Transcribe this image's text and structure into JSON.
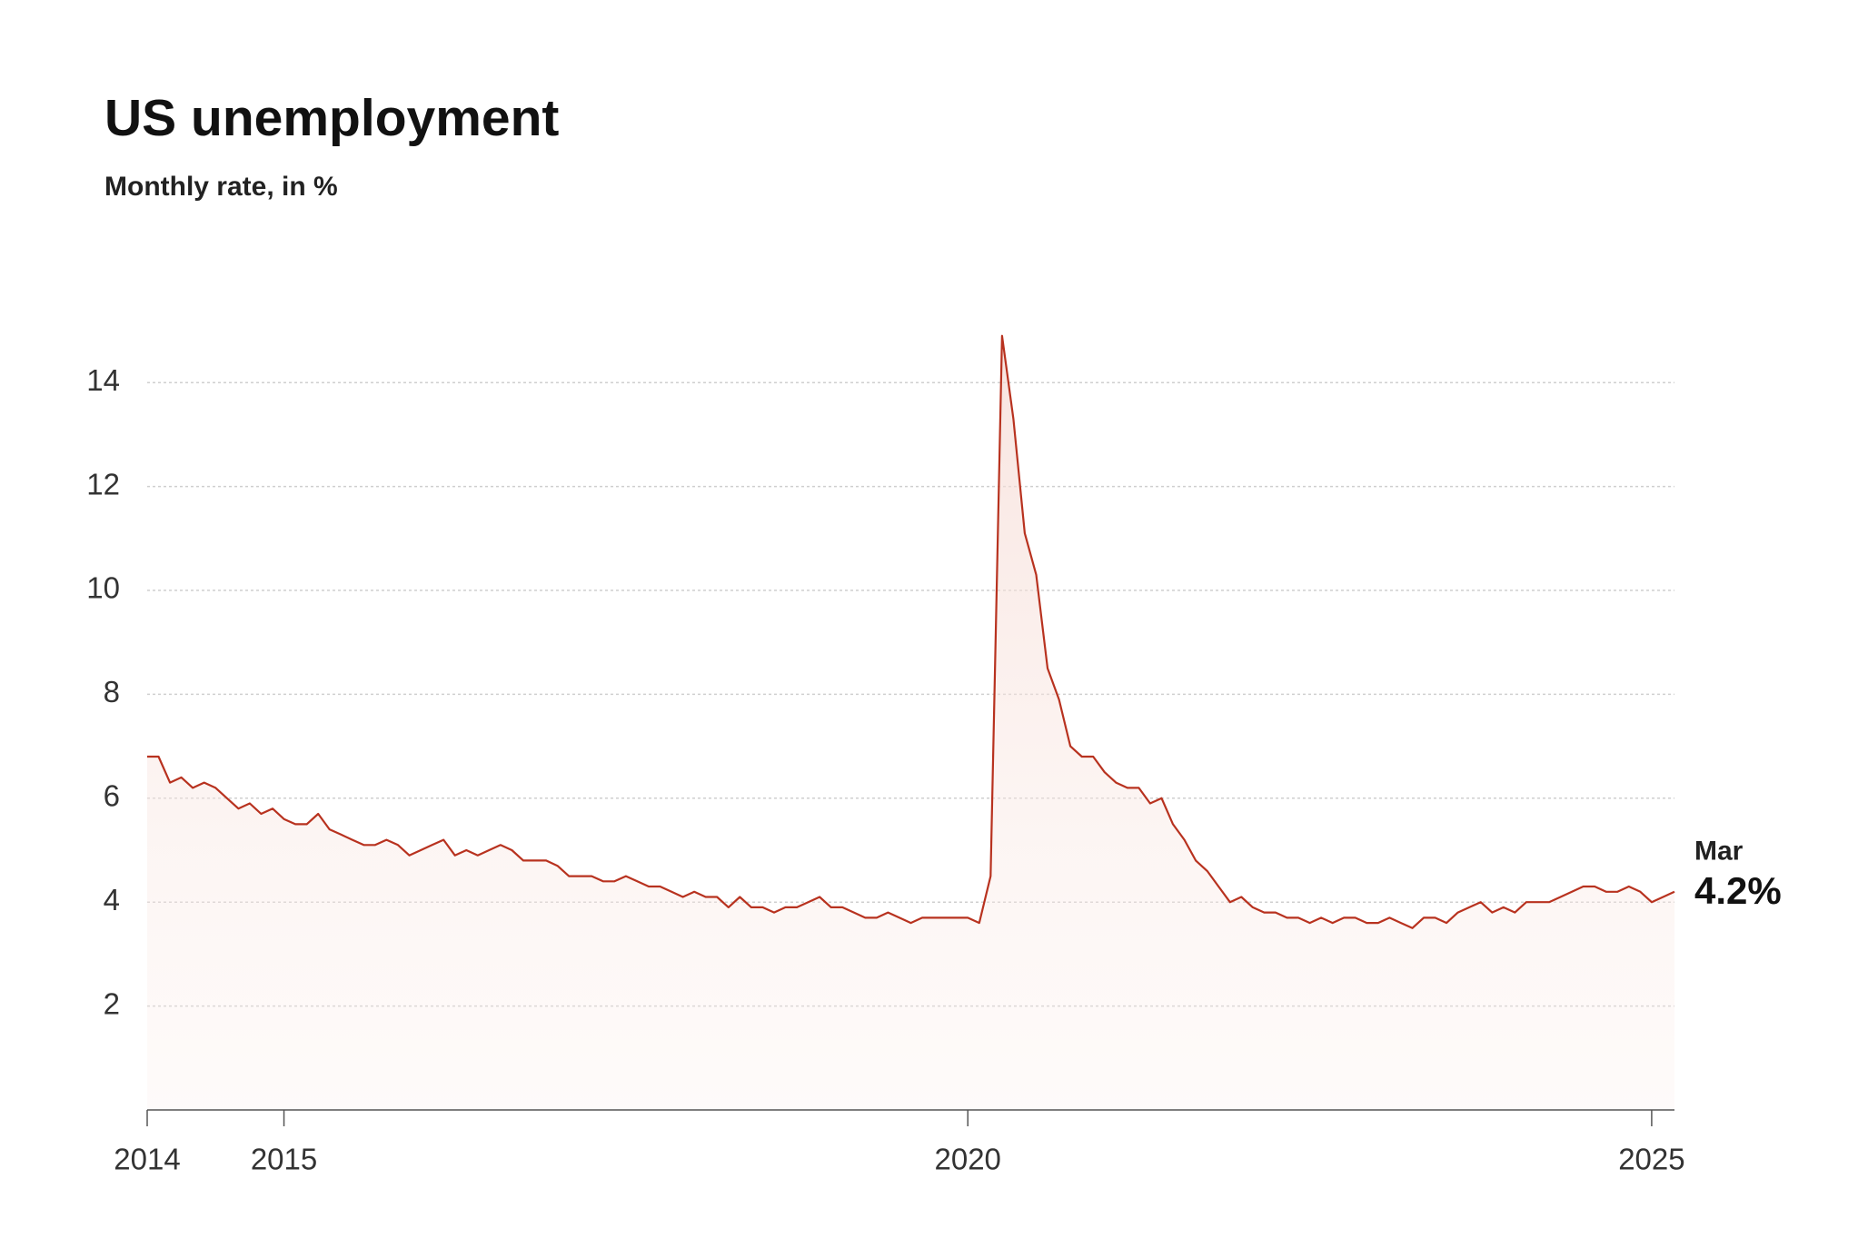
{
  "chart_data": {
    "type": "line",
    "title": "US unemployment",
    "subtitle": "Monthly rate, in %",
    "categories": [
      "2014",
      null,
      null,
      null,
      null,
      null,
      null,
      null,
      null,
      null,
      null,
      null,
      "2015",
      null,
      null,
      null,
      null,
      null,
      null,
      null,
      null,
      null,
      null,
      null,
      null,
      null,
      null,
      null,
      null,
      null,
      null,
      null,
      null,
      null,
      null,
      null,
      null,
      null,
      null,
      null,
      null,
      null,
      null,
      null,
      null,
      null,
      null,
      null,
      null,
      null,
      null,
      null,
      null,
      null,
      null,
      null,
      null,
      null,
      null,
      null,
      null,
      null,
      null,
      null,
      null,
      null,
      null,
      null,
      null,
      null,
      null,
      null,
      "2020",
      null,
      null,
      null,
      null,
      null,
      null,
      null,
      null,
      null,
      null,
      null,
      null,
      null,
      null,
      null,
      null,
      null,
      null,
      null,
      null,
      null,
      null,
      null,
      null,
      null,
      null,
      null,
      null,
      null,
      null,
      null,
      null,
      null,
      null,
      null,
      null,
      null,
      null,
      null,
      null,
      null,
      null,
      null,
      null,
      null,
      null,
      null,
      null,
      null,
      null,
      null,
      null,
      null,
      null,
      null,
      null,
      null,
      null,
      null,
      "2025",
      null,
      null
    ],
    "series": [
      {
        "color": "#b8321f",
        "values": [
          6.8,
          6.8,
          6.3,
          6.4,
          6.2,
          6.3,
          6.2,
          6.0,
          5.8,
          5.9,
          5.7,
          5.8,
          5.6,
          5.5,
          5.5,
          5.7,
          5.4,
          5.3,
          5.2,
          5.1,
          5.1,
          5.2,
          5.1,
          4.9,
          5.0,
          5.1,
          5.2,
          4.9,
          5.0,
          4.9,
          5.0,
          5.1,
          5.0,
          4.8,
          4.8,
          4.8,
          4.7,
          4.5,
          4.5,
          4.5,
          4.4,
          4.4,
          4.5,
          4.4,
          4.3,
          4.3,
          4.2,
          4.1,
          4.2,
          4.1,
          4.1,
          3.9,
          4.1,
          3.9,
          3.9,
          3.8,
          3.9,
          3.9,
          4.0,
          4.1,
          3.9,
          3.9,
          3.8,
          3.7,
          3.7,
          3.8,
          3.7,
          3.6,
          3.7,
          3.7,
          3.7,
          3.7,
          3.7,
          3.6,
          4.5,
          14.9,
          13.3,
          11.1,
          10.3,
          8.5,
          7.9,
          7.0,
          6.8,
          6.8,
          6.5,
          6.3,
          6.2,
          6.2,
          5.9,
          6.0,
          5.5,
          5.2,
          4.8,
          4.6,
          4.3,
          4.0,
          4.1,
          3.9,
          3.8,
          3.8,
          3.7,
          3.7,
          3.6,
          3.7,
          3.6,
          3.7,
          3.7,
          3.6,
          3.6,
          3.7,
          3.6,
          3.5,
          3.7,
          3.7,
          3.6,
          3.8,
          3.9,
          4.0,
          3.8,
          3.9,
          3.8,
          4.0,
          4.0,
          4.0,
          4.1,
          4.2,
          4.3,
          4.3,
          4.2,
          4.2,
          4.3,
          4.2,
          4.0,
          4.1,
          4.2
        ],
        "value_labels": [
          null,
          null,
          null,
          null,
          null,
          null,
          null,
          null,
          null,
          null,
          null,
          null,
          null,
          null,
          null,
          null,
          null,
          null,
          null,
          null,
          null,
          null,
          null,
          null,
          null,
          null,
          null,
          null,
          null,
          null,
          null,
          null,
          null,
          null,
          null,
          null,
          null,
          null,
          null,
          null,
          null,
          null,
          null,
          null,
          null,
          null,
          null,
          null,
          null,
          null,
          null,
          null,
          null,
          null,
          null,
          null,
          null,
          null,
          null,
          null,
          null,
          null,
          null,
          null,
          null,
          null,
          null,
          null,
          null,
          null,
          null,
          null,
          null,
          null,
          null,
          null,
          null,
          null,
          null,
          null,
          null,
          null,
          null,
          null,
          null,
          null,
          null,
          null,
          null,
          null,
          null,
          null,
          null,
          null,
          null,
          null,
          null,
          null,
          null,
          null,
          null,
          null,
          null,
          null,
          null,
          null,
          null,
          null,
          null,
          null,
          null,
          null,
          null,
          null,
          null,
          null,
          null,
          null,
          null,
          null,
          null,
          null,
          null,
          null,
          null,
          null,
          null,
          null,
          null,
          null,
          null,
          null,
          null,
          null,
          "4.2%"
        ]
      }
    ],
    "annotation": "Mar",
    "ylim": [
      0,
      15
    ],
    "yticks": [
      2,
      4,
      6,
      8,
      10,
      12,
      14
    ],
    "grid": true
  }
}
